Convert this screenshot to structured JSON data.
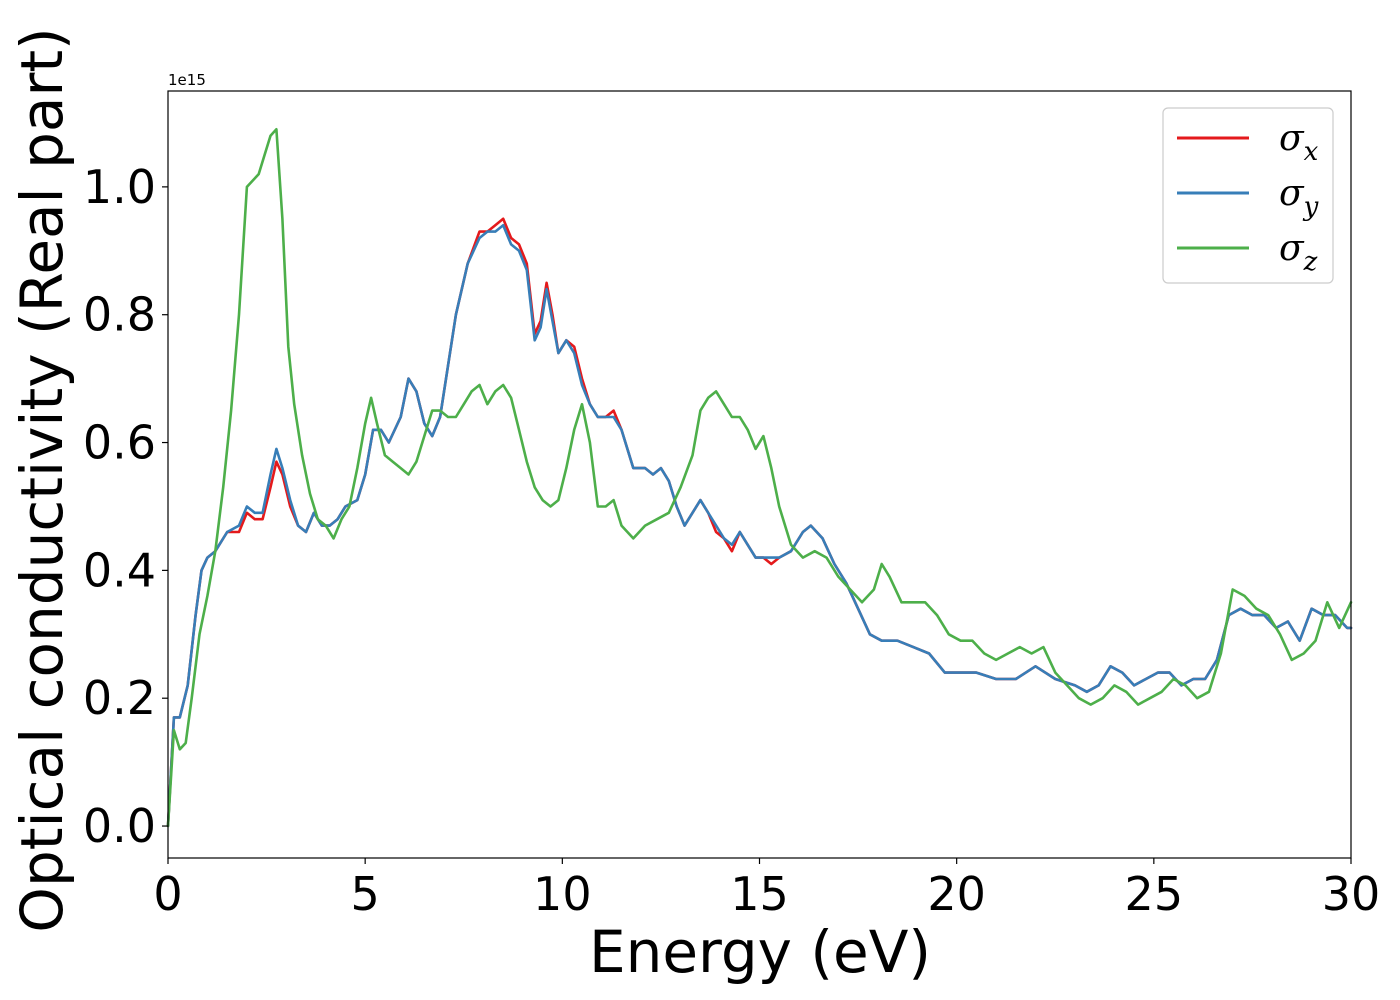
{
  "chart_data": {
    "type": "line",
    "xlabel": "Energy (eV)",
    "ylabel": "Optical conductivity (Real part)",
    "y_offset_label": "1e15",
    "xlim": [
      0,
      30
    ],
    "ylim": [
      -0.05,
      1.15
    ],
    "xticks": [
      0,
      5,
      10,
      15,
      20,
      25,
      30
    ],
    "xtick_labels": [
      "0",
      "5",
      "10",
      "15",
      "20",
      "25",
      "30"
    ],
    "yticks": [
      0.0,
      0.2,
      0.4,
      0.6,
      0.8,
      1.0
    ],
    "ytick_labels": [
      "0.0",
      "0.2",
      "0.4",
      "0.6",
      "0.8",
      "1.0"
    ],
    "grid": false,
    "legend_position": "top-right",
    "series": [
      {
        "name": "σx",
        "symbol": "σ",
        "subscript": "x",
        "color": "#e41a1c",
        "x": [
          0,
          0.15,
          0.3,
          0.5,
          0.7,
          0.85,
          1.0,
          1.2,
          1.5,
          1.8,
          2.0,
          2.2,
          2.4,
          2.6,
          2.75,
          2.9,
          3.1,
          3.3,
          3.5,
          3.7,
          3.9,
          4.1,
          4.3,
          4.5,
          4.8,
          5.0,
          5.2,
          5.4,
          5.6,
          5.9,
          6.1,
          6.3,
          6.5,
          6.7,
          6.9,
          7.1,
          7.3,
          7.6,
          7.9,
          8.1,
          8.3,
          8.5,
          8.7,
          8.9,
          9.1,
          9.3,
          9.45,
          9.6,
          9.75,
          9.9,
          10.1,
          10.3,
          10.5,
          10.7,
          10.9,
          11.1,
          11.3,
          11.5,
          11.8,
          12.1,
          12.3,
          12.5,
          12.7,
          12.9,
          13.1,
          13.3,
          13.5,
          13.7,
          13.9,
          14.1,
          14.3,
          14.5,
          14.7,
          14.9,
          15.1,
          15.3,
          15.5,
          15.8,
          16.1,
          16.3,
          16.6,
          16.9,
          17.2,
          17.5,
          17.8,
          18.1,
          18.5,
          18.9,
          19.3,
          19.7,
          20.1,
          20.5,
          21.0,
          21.5,
          22.0,
          22.5,
          23.0,
          23.3,
          23.6,
          23.9,
          24.2,
          24.5,
          24.8,
          25.1,
          25.4,
          25.7,
          26.0,
          26.3,
          26.6,
          26.9,
          27.2,
          27.5,
          27.8,
          28.1,
          28.4,
          28.7,
          29.0,
          29.3,
          29.6,
          29.9,
          30.0
        ],
        "y": [
          0.0,
          0.17,
          0.17,
          0.22,
          0.33,
          0.4,
          0.42,
          0.43,
          0.46,
          0.46,
          0.49,
          0.48,
          0.48,
          0.53,
          0.57,
          0.55,
          0.5,
          0.47,
          0.46,
          0.49,
          0.47,
          0.47,
          0.48,
          0.5,
          0.51,
          0.55,
          0.62,
          0.62,
          0.6,
          0.64,
          0.7,
          0.68,
          0.63,
          0.61,
          0.64,
          0.72,
          0.8,
          0.88,
          0.93,
          0.93,
          0.94,
          0.95,
          0.92,
          0.91,
          0.88,
          0.77,
          0.79,
          0.85,
          0.8,
          0.74,
          0.76,
          0.75,
          0.7,
          0.66,
          0.64,
          0.64,
          0.65,
          0.62,
          0.56,
          0.56,
          0.55,
          0.56,
          0.54,
          0.5,
          0.47,
          0.49,
          0.51,
          0.49,
          0.46,
          0.45,
          0.43,
          0.46,
          0.44,
          0.42,
          0.42,
          0.41,
          0.42,
          0.43,
          0.46,
          0.47,
          0.45,
          0.41,
          0.38,
          0.34,
          0.3,
          0.29,
          0.29,
          0.28,
          0.27,
          0.24,
          0.24,
          0.24,
          0.23,
          0.23,
          0.25,
          0.23,
          0.22,
          0.21,
          0.22,
          0.25,
          0.24,
          0.22,
          0.23,
          0.24,
          0.24,
          0.22,
          0.23,
          0.23,
          0.26,
          0.33,
          0.34,
          0.33,
          0.33,
          0.31,
          0.32,
          0.29,
          0.34,
          0.33,
          0.33,
          0.31,
          0.31
        ]
      },
      {
        "name": "σy",
        "symbol": "σ",
        "subscript": "y",
        "color": "#377eb8",
        "x": [
          0,
          0.15,
          0.3,
          0.5,
          0.7,
          0.85,
          1.0,
          1.2,
          1.5,
          1.8,
          2.0,
          2.2,
          2.4,
          2.6,
          2.75,
          2.9,
          3.1,
          3.3,
          3.5,
          3.7,
          3.9,
          4.1,
          4.3,
          4.5,
          4.8,
          5.0,
          5.2,
          5.4,
          5.6,
          5.9,
          6.1,
          6.3,
          6.5,
          6.7,
          6.9,
          7.1,
          7.3,
          7.6,
          7.9,
          8.1,
          8.3,
          8.5,
          8.7,
          8.9,
          9.1,
          9.3,
          9.45,
          9.6,
          9.75,
          9.9,
          10.1,
          10.3,
          10.5,
          10.7,
          10.9,
          11.1,
          11.3,
          11.5,
          11.8,
          12.1,
          12.3,
          12.5,
          12.7,
          12.9,
          13.1,
          13.3,
          13.5,
          13.7,
          13.9,
          14.1,
          14.3,
          14.5,
          14.7,
          14.9,
          15.1,
          15.3,
          15.5,
          15.8,
          16.1,
          16.3,
          16.6,
          16.9,
          17.2,
          17.5,
          17.8,
          18.1,
          18.5,
          18.9,
          19.3,
          19.7,
          20.1,
          20.5,
          21.0,
          21.5,
          22.0,
          22.5,
          23.0,
          23.3,
          23.6,
          23.9,
          24.2,
          24.5,
          24.8,
          25.1,
          25.4,
          25.7,
          26.0,
          26.3,
          26.6,
          26.9,
          27.2,
          27.5,
          27.8,
          28.1,
          28.4,
          28.7,
          29.0,
          29.3,
          29.6,
          29.9,
          30.0
        ],
        "y": [
          0.0,
          0.17,
          0.17,
          0.22,
          0.33,
          0.4,
          0.42,
          0.43,
          0.46,
          0.47,
          0.5,
          0.49,
          0.49,
          0.55,
          0.59,
          0.56,
          0.51,
          0.47,
          0.46,
          0.49,
          0.47,
          0.47,
          0.48,
          0.5,
          0.51,
          0.55,
          0.62,
          0.62,
          0.6,
          0.64,
          0.7,
          0.68,
          0.63,
          0.61,
          0.64,
          0.72,
          0.8,
          0.88,
          0.92,
          0.93,
          0.93,
          0.94,
          0.91,
          0.9,
          0.87,
          0.76,
          0.78,
          0.84,
          0.79,
          0.74,
          0.76,
          0.74,
          0.69,
          0.66,
          0.64,
          0.64,
          0.64,
          0.62,
          0.56,
          0.56,
          0.55,
          0.56,
          0.54,
          0.5,
          0.47,
          0.49,
          0.51,
          0.49,
          0.47,
          0.45,
          0.44,
          0.46,
          0.44,
          0.42,
          0.42,
          0.42,
          0.42,
          0.43,
          0.46,
          0.47,
          0.45,
          0.41,
          0.38,
          0.34,
          0.3,
          0.29,
          0.29,
          0.28,
          0.27,
          0.24,
          0.24,
          0.24,
          0.23,
          0.23,
          0.25,
          0.23,
          0.22,
          0.21,
          0.22,
          0.25,
          0.24,
          0.22,
          0.23,
          0.24,
          0.24,
          0.22,
          0.23,
          0.23,
          0.26,
          0.33,
          0.34,
          0.33,
          0.33,
          0.31,
          0.32,
          0.29,
          0.34,
          0.33,
          0.33,
          0.31,
          0.31
        ]
      },
      {
        "name": "σz",
        "symbol": "σ",
        "subscript": "z",
        "color": "#4daf4a",
        "x": [
          0,
          0.15,
          0.3,
          0.45,
          0.6,
          0.8,
          1.0,
          1.2,
          1.4,
          1.6,
          1.8,
          2.0,
          2.15,
          2.3,
          2.45,
          2.6,
          2.75,
          2.9,
          3.05,
          3.2,
          3.4,
          3.6,
          3.8,
          4.0,
          4.2,
          4.4,
          4.6,
          4.8,
          5.0,
          5.15,
          5.3,
          5.5,
          5.7,
          5.9,
          6.1,
          6.3,
          6.5,
          6.7,
          6.9,
          7.1,
          7.3,
          7.5,
          7.7,
          7.9,
          8.1,
          8.3,
          8.5,
          8.7,
          8.9,
          9.1,
          9.3,
          9.5,
          9.7,
          9.9,
          10.1,
          10.3,
          10.5,
          10.7,
          10.9,
          11.1,
          11.3,
          11.5,
          11.8,
          12.1,
          12.4,
          12.7,
          13.0,
          13.3,
          13.5,
          13.7,
          13.9,
          14.1,
          14.3,
          14.5,
          14.7,
          14.9,
          15.1,
          15.3,
          15.5,
          15.8,
          16.1,
          16.4,
          16.7,
          17.0,
          17.3,
          17.6,
          17.9,
          18.1,
          18.3,
          18.6,
          18.9,
          19.2,
          19.5,
          19.8,
          20.1,
          20.4,
          20.7,
          21.0,
          21.3,
          21.6,
          21.9,
          22.2,
          22.5,
          22.8,
          23.1,
          23.4,
          23.7,
          24.0,
          24.3,
          24.6,
          24.9,
          25.2,
          25.5,
          25.8,
          26.1,
          26.4,
          26.7,
          27.0,
          27.3,
          27.6,
          27.9,
          28.2,
          28.5,
          28.8,
          29.1,
          29.4,
          29.7,
          30.0
        ],
        "y": [
          0.0,
          0.15,
          0.12,
          0.13,
          0.2,
          0.3,
          0.36,
          0.43,
          0.53,
          0.65,
          0.8,
          1.0,
          1.01,
          1.02,
          1.05,
          1.08,
          1.09,
          0.95,
          0.75,
          0.66,
          0.58,
          0.52,
          0.48,
          0.47,
          0.45,
          0.48,
          0.5,
          0.56,
          0.63,
          0.67,
          0.63,
          0.58,
          0.57,
          0.56,
          0.55,
          0.57,
          0.61,
          0.65,
          0.65,
          0.64,
          0.64,
          0.66,
          0.68,
          0.69,
          0.66,
          0.68,
          0.69,
          0.67,
          0.62,
          0.57,
          0.53,
          0.51,
          0.5,
          0.51,
          0.56,
          0.62,
          0.66,
          0.6,
          0.5,
          0.5,
          0.51,
          0.47,
          0.45,
          0.47,
          0.48,
          0.49,
          0.53,
          0.58,
          0.65,
          0.67,
          0.68,
          0.66,
          0.64,
          0.64,
          0.62,
          0.59,
          0.61,
          0.56,
          0.5,
          0.44,
          0.42,
          0.43,
          0.42,
          0.39,
          0.37,
          0.35,
          0.37,
          0.41,
          0.39,
          0.35,
          0.35,
          0.35,
          0.33,
          0.3,
          0.29,
          0.29,
          0.27,
          0.26,
          0.27,
          0.28,
          0.27,
          0.28,
          0.24,
          0.22,
          0.2,
          0.19,
          0.2,
          0.22,
          0.21,
          0.19,
          0.2,
          0.21,
          0.23,
          0.22,
          0.2,
          0.21,
          0.27,
          0.37,
          0.36,
          0.34,
          0.33,
          0.3,
          0.26,
          0.27,
          0.29,
          0.35,
          0.31,
          0.35
        ]
      }
    ]
  }
}
